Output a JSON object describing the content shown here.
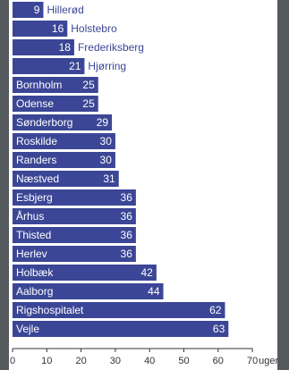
{
  "chart_data": {
    "type": "bar",
    "orientation": "horizontal",
    "categories": [
      "Hillerød",
      "Holstebro",
      "Frederiksberg",
      "Hjørring",
      "Bornholm",
      "Odense",
      "Sønderborg",
      "Roskilde",
      "Randers",
      "Næstved",
      "Esbjerg",
      "Århus",
      "Thisted",
      "Herlev",
      "Holbæk",
      "Aalborg",
      "Rigshospitalet",
      "Vejle"
    ],
    "values": [
      9,
      16,
      18,
      21,
      25,
      25,
      29,
      30,
      30,
      31,
      36,
      36,
      36,
      36,
      42,
      44,
      62,
      63
    ],
    "xlabel": "uger",
    "xlim": [
      0,
      70
    ],
    "xticks": [
      0,
      10,
      20,
      30,
      40,
      50,
      60,
      70
    ],
    "grid": false,
    "legend": "none",
    "colors": {
      "bar": "#3b4696",
      "panel": "#ffffff",
      "background": "#555a5c",
      "bar_text": "#ffffff",
      "outside_text": "#3b4696",
      "axis_text": "#333333"
    }
  }
}
